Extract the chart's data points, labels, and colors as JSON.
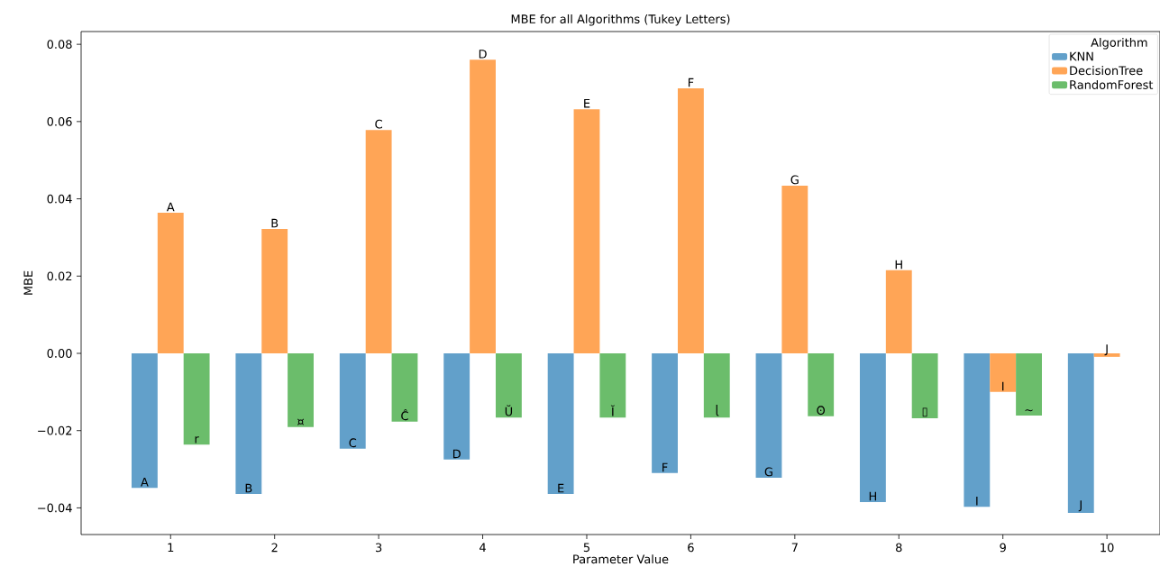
{
  "chart_data": {
    "type": "bar",
    "title": "MBE for all Algorithms (Tukey Letters)",
    "xlabel": "Parameter Value",
    "ylabel": "MBE",
    "legend_title": "Algorithm",
    "categories": [
      "1",
      "2",
      "3",
      "4",
      "5",
      "6",
      "7",
      "8",
      "9",
      "10"
    ],
    "series": [
      {
        "name": "KNN",
        "color": "#62a0ca",
        "values": [
          -0.0348,
          -0.0364,
          -0.0247,
          -0.0275,
          -0.0364,
          -0.031,
          -0.0322,
          -0.0385,
          -0.0397,
          -0.0413
        ],
        "value_labels": [
          "A",
          "B",
          "C",
          "D",
          "E",
          "F",
          "G",
          "H",
          "I",
          "J"
        ]
      },
      {
        "name": "DecisionTree",
        "color": "#ffa556",
        "values": [
          0.0364,
          0.0322,
          0.0578,
          0.076,
          0.0632,
          0.0686,
          0.0434,
          0.0215,
          -0.01,
          -0.0009
        ],
        "value_labels": [
          "A",
          "B",
          "C",
          "D",
          "E",
          "F",
          "G",
          "H",
          "I",
          "J"
        ]
      },
      {
        "name": "RandomForest",
        "color": "#6bbd6b",
        "values": [
          -0.0236,
          -0.0191,
          -0.0177,
          -0.0166,
          -0.0166,
          -0.0166,
          -0.0163,
          -0.0168,
          -0.0161,
          null
        ],
        "value_labels": [
          "r",
          "¤",
          "Ĉ",
          "Ŭ",
          "Ĭ",
          "ɭ",
          "ʘ",
          "▯",
          "~",
          null
        ]
      }
    ],
    "ylim": [
      -0.0469,
      0.0833
    ],
    "yticks": [
      {
        "value": -0.04,
        "label": "−0.04"
      },
      {
        "value": -0.02,
        "label": "−0.02"
      },
      {
        "value": 0,
        "label": "0.00"
      },
      {
        "value": 0.02,
        "label": "0.02"
      },
      {
        "value": 0.04,
        "label": "0.04"
      },
      {
        "value": 0.06,
        "label": "0.06"
      },
      {
        "value": 0.08,
        "label": "0.08"
      }
    ],
    "legend": "top right",
    "grid": false
  }
}
